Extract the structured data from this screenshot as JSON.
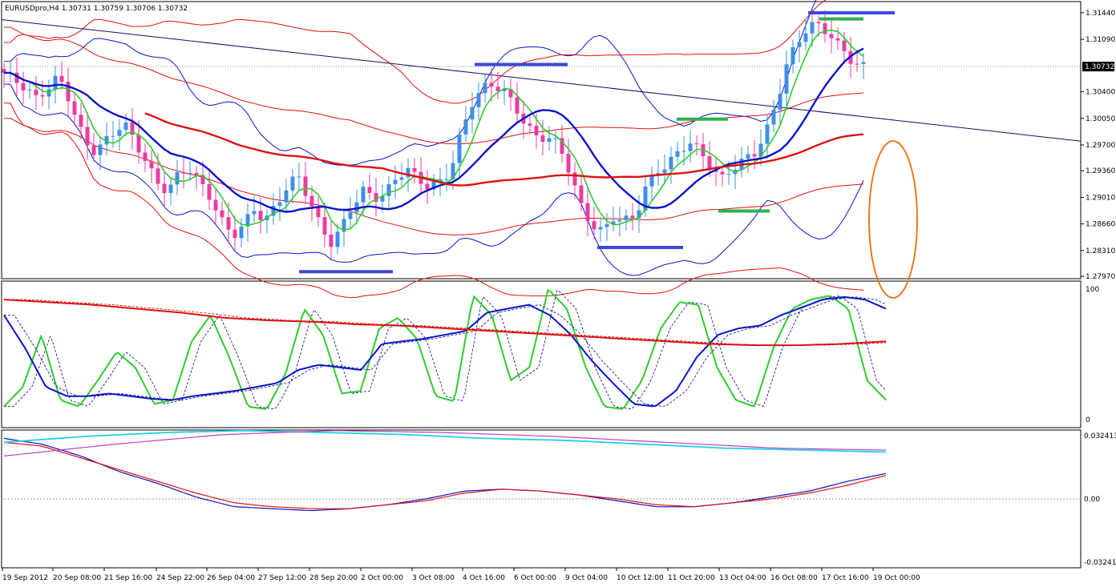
{
  "chart_title": "EURUSDpro,H4  1.30731 1.30759 1.30706 1.30732",
  "current_price": "1.30732",
  "colors": {
    "bull": "#3d8fe6",
    "bear": "#ea3ca0",
    "green": "#2ecc2e",
    "blue": "#0a14c8",
    "red": "#e01010",
    "darkred": "#c00000",
    "cyan": "#20d0e8",
    "magenta": "#c040c0",
    "annotation": "#f07820"
  },
  "chart_data": [
    {
      "type": "candlestick",
      "panel": "main",
      "ylim": [
        1.2797,
        1.3144
      ],
      "y_ticks": [
        "1.31440",
        "1.31090",
        "1.30400",
        "1.30050",
        "1.29700",
        "1.29360",
        "1.29010",
        "1.28660",
        "1.28310",
        "1.27970"
      ],
      "x_ticks": [
        "19 Sep 2012",
        "20 Sep 08:00",
        "21 Sep 16:00",
        "24 Sep 22:00",
        "26 Sep 04:00",
        "27 Sep 12:00",
        "28 Sep 20:00",
        "2 Oct 00:00",
        "3 Oct 08:00",
        "4 Oct 16:00",
        "6 Oct 00:00",
        "9 Oct 04:00",
        "10 Oct 12:00",
        "11 Oct 20:00",
        "13 Oct 04:00",
        "16 Oct 08:00",
        "17 Oct 16:00",
        "19 Oct 00:00"
      ],
      "close_path": [
        1.3065,
        1.3055,
        1.3045,
        1.303,
        1.3045,
        1.306,
        1.303,
        1.299,
        1.296,
        1.297,
        1.2985,
        1.3,
        1.2975,
        1.295,
        1.292,
        1.291,
        1.293,
        1.294,
        1.292,
        1.29,
        1.287,
        1.285,
        1.2865,
        1.2885,
        1.287,
        1.289,
        1.2915,
        1.293,
        1.29,
        1.2865,
        1.284,
        1.286,
        1.289,
        1.291,
        1.29,
        1.2905,
        1.2925,
        1.294,
        1.2925,
        1.2915,
        1.292,
        1.2935,
        1.2985,
        1.3025,
        1.3045,
        1.305,
        1.304,
        1.302,
        1.2995,
        1.298,
        1.298,
        1.297,
        1.2935,
        1.289,
        1.2865,
        1.2855,
        1.2875,
        1.287,
        1.2875,
        1.2915,
        1.2935,
        1.2945,
        1.296,
        1.2975,
        1.296,
        1.294,
        1.2925,
        1.294,
        1.295,
        1.296,
        1.2985,
        1.3025,
        1.308,
        1.3105,
        1.313,
        1.3125,
        1.3115,
        1.3095,
        1.308,
        1.3073
      ],
      "trendline": {
        "from": [
          "19 Sep 2012",
          1.3135
        ],
        "to": [
          "19 Oct 00:00",
          1.2975
        ]
      },
      "annotations": [
        "support/resistance bars (blue, green)",
        "ellipse highlighting Bollinger band expansion"
      ]
    },
    {
      "type": "line",
      "panel": "oscillator",
      "ylim": [
        0,
        100
      ],
      "y_ticks": [
        "100",
        "0"
      ],
      "series": [
        {
          "values": [
            10,
            25,
            65,
            15,
            10,
            30,
            52,
            40,
            12,
            15,
            60,
            80,
            48,
            10,
            8,
            35,
            85,
            65,
            20,
            22,
            70,
            78,
            62,
            18,
            14,
            95,
            80,
            30,
            40,
            100,
            85,
            40,
            10,
            8,
            30,
            70,
            90,
            88,
            40,
            15,
            10,
            55,
            85,
            92,
            95,
            85,
            30,
            15
          ]
        },
        {
          "values": [
            80,
            55,
            25,
            18,
            18,
            20,
            18,
            16,
            15,
            18,
            20,
            22,
            25,
            28,
            38,
            42,
            40,
            38,
            58,
            60,
            62,
            65,
            68,
            82,
            85,
            88,
            80,
            65,
            45,
            28,
            12,
            10,
            22,
            48,
            65,
            70,
            72,
            80,
            86,
            92,
            94,
            92,
            85
          ]
        },
        {
          "values": [
            92,
            90,
            88,
            85,
            82,
            78,
            76,
            75,
            73,
            72,
            70,
            68,
            66,
            64,
            62,
            60,
            58,
            57,
            57,
            58,
            60
          ]
        }
      ]
    },
    {
      "type": "line",
      "panel": "macd",
      "ylim": [
        -0.03241,
        0.03241
      ],
      "y_ticks": [
        "0.032413",
        "0.00",
        "-0.03241"
      ],
      "series": [
        {
          "values": [
            0.031,
            0.028,
            0.022,
            0.014,
            0.008,
            0.001,
            -0.004,
            -0.005,
            -0.006,
            -0.005,
            -0.003,
            0.0,
            0.004,
            0.005,
            0.004,
            0.002,
            -0.001,
            -0.004,
            -0.004,
            -0.002,
            0.001,
            0.004,
            0.009,
            0.013
          ]
        },
        {
          "values": [
            0.029,
            0.027,
            0.021,
            0.015,
            0.009,
            0.003,
            -0.002,
            -0.004,
            -0.005,
            -0.005,
            -0.003,
            -0.001,
            0.003,
            0.005,
            0.004,
            0.002,
            0.0,
            -0.003,
            -0.004,
            -0.002,
            0.0,
            0.003,
            0.007,
            0.012
          ]
        },
        {
          "values": [
            0.029,
            0.032,
            0.034,
            0.035,
            0.034,
            0.033,
            0.031,
            0.03,
            0.028,
            0.026,
            0.025,
            0.024
          ]
        },
        {
          "values": [
            0.022,
            0.028,
            0.033,
            0.035,
            0.034,
            0.032,
            0.029,
            0.026,
            0.025
          ]
        }
      ]
    }
  ]
}
